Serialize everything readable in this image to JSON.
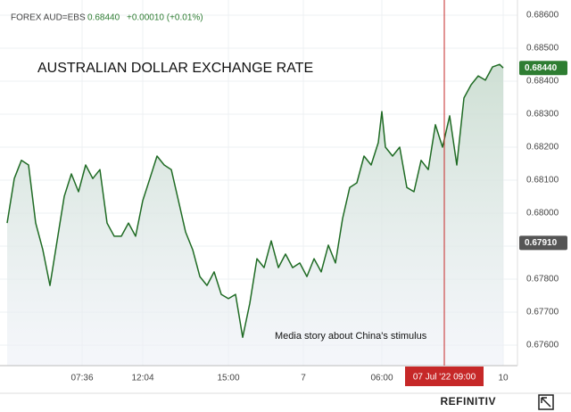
{
  "chart_data": {
    "type": "line",
    "header": {
      "symbol": "FOREX AUD=EBS",
      "last": "0.68440",
      "change": "+0.00010 (+0.01%)"
    },
    "title": "AUSTRALIAN DOLLAR EXCHANGE RATE",
    "annotation": "Media story about China's stimulus",
    "brand": "REFINITIV",
    "x": [
      2,
      4,
      6,
      8,
      10,
      12,
      14,
      16,
      18,
      20,
      22,
      24,
      26,
      28,
      30,
      32,
      34,
      36,
      38,
      40,
      42,
      44,
      46,
      48,
      50,
      52,
      54,
      56,
      58,
      60,
      62,
      64,
      66,
      68,
      70,
      72,
      74,
      76,
      78,
      80,
      82,
      84,
      86,
      88,
      90,
      92,
      94,
      96,
      98,
      100,
      102,
      104,
      106,
      107,
      108,
      110,
      112,
      114,
      116,
      118,
      120,
      122,
      124,
      126,
      128,
      130,
      132,
      134,
      136,
      138,
      140,
      141
    ],
    "series": [
      {
        "name": "AUD=EBS",
        "color": "#1f6b24",
        "values": [
          0.6797,
          0.68105,
          0.6816,
          0.68146,
          0.6797,
          0.67889,
          0.67781,
          0.67916,
          0.68051,
          0.68119,
          0.68065,
          0.68146,
          0.68105,
          0.68132,
          0.6797,
          0.6793,
          0.6793,
          0.6797,
          0.6793,
          0.68038,
          0.68105,
          0.68173,
          0.68146,
          0.68132,
          0.68038,
          0.67943,
          0.67889,
          0.67808,
          0.67781,
          0.67822,
          0.67754,
          0.67741,
          0.67754,
          0.67624,
          0.67727,
          0.67862,
          0.67835,
          0.67916,
          0.67835,
          0.67876,
          0.67835,
          0.67849,
          0.67808,
          0.67862,
          0.67822,
          0.67903,
          0.67849,
          0.67984,
          0.68078,
          0.68092,
          0.68173,
          0.68146,
          0.68214,
          0.68308,
          0.682,
          0.68173,
          0.682,
          0.68078,
          0.68065,
          0.6816,
          0.68132,
          0.68268,
          0.682,
          0.68295,
          0.68146,
          0.68349,
          0.68389,
          0.68416,
          0.68403,
          0.68443,
          0.68451,
          0.6844
        ]
      }
    ],
    "xlim": [
      0,
      145
    ],
    "xticks": [
      {
        "value": 23,
        "label": "07:36"
      },
      {
        "value": 40,
        "label": "12:04"
      },
      {
        "value": 64,
        "label": "15:00"
      },
      {
        "value": 85,
        "label": "7"
      },
      {
        "value": 107,
        "label": "06:00"
      },
      {
        "value": 141,
        "label": "10"
      }
    ],
    "ylim": [
      0.67538,
      0.68646
    ],
    "yticks": [
      {
        "value": 0.676,
        "label": "0.67600"
      },
      {
        "value": 0.677,
        "label": "0.67700"
      },
      {
        "value": 0.678,
        "label": "0.67800"
      },
      {
        "value": 0.679,
        "label": "0.67900"
      },
      {
        "value": 0.68,
        "label": "0.68000"
      },
      {
        "value": 0.681,
        "label": "0.68100"
      },
      {
        "value": 0.682,
        "label": "0.68200"
      },
      {
        "value": 0.683,
        "label": "0.68300"
      },
      {
        "value": 0.684,
        "label": "0.68400"
      },
      {
        "value": 0.685,
        "label": "0.68500"
      },
      {
        "value": 0.686,
        "label": "0.68600"
      }
    ],
    "price_markers": [
      {
        "value": 0.6844,
        "label": "0.68440",
        "color": "#2e7d32"
      },
      {
        "value": 0.6791,
        "label": "0.67910",
        "color": "#555555"
      }
    ],
    "crosshair": {
      "x": 124.5,
      "label": "07 Jul '22  09:00",
      "color": "#c62828"
    },
    "grid": true
  }
}
